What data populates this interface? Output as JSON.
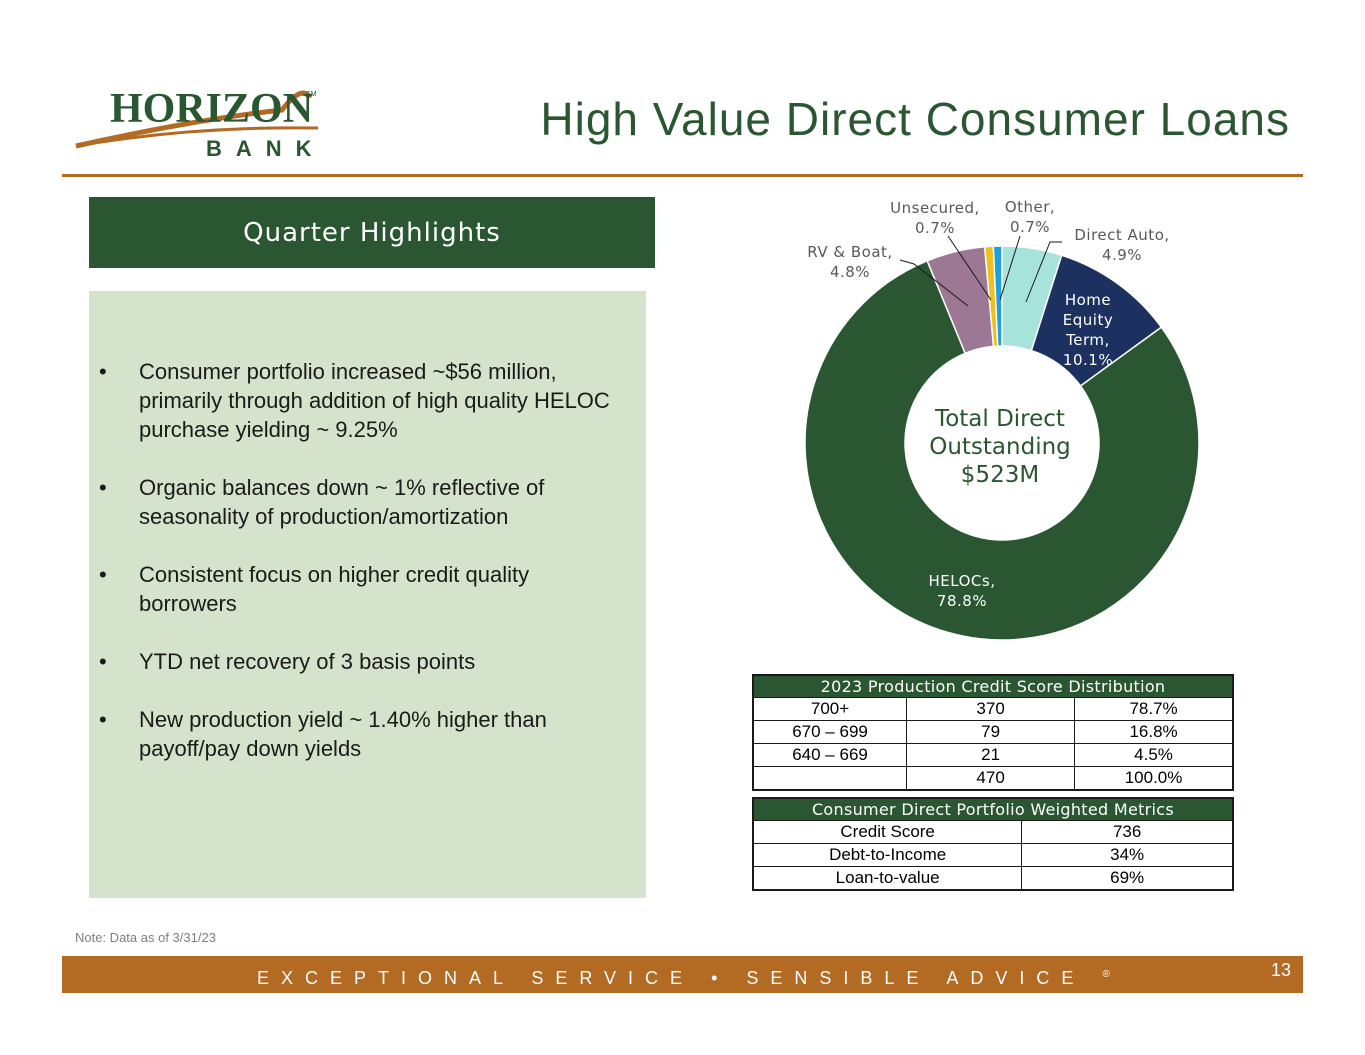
{
  "logo": {
    "text": "HORIZON",
    "sub": "BANK",
    "mark": "SM"
  },
  "title": "High Value Direct Consumer Loans",
  "highlights": {
    "header": "Quarter Highlights",
    "bullet": "•",
    "items": [
      "Consumer portfolio increased ~$56 million, primarily through addition of high quality HELOC purchase yielding ~ 9.25%",
      "Organic balances down ~ 1% reflective of seasonality of production/amortization",
      "Consistent focus on higher credit quality borrowers",
      "YTD net recovery of 3 basis points",
      "New production yield ~ 1.40% higher than payoff/pay down yields"
    ]
  },
  "chart_data": {
    "type": "pie",
    "donut": true,
    "center_text": [
      "Total Direct",
      "Outstanding",
      "$523M"
    ],
    "slices": [
      {
        "name": "Direct Auto",
        "value": 4.9,
        "label": [
          "Direct Auto,",
          "4.9%"
        ],
        "color": "#a6e3da"
      },
      {
        "name": "Home Equity Term",
        "value": 10.1,
        "label": [
          "Home",
          "Equity",
          "Term,",
          "10.1%"
        ],
        "color": "#1c3160"
      },
      {
        "name": "HELOCs",
        "value": 78.8,
        "label": [
          "HELOCs,",
          "78.8%"
        ],
        "color": "#2a5631"
      },
      {
        "name": "RV & Boat",
        "value": 4.8,
        "label": [
          "RV & Boat,",
          "4.8%"
        ],
        "color": "#9c7895"
      },
      {
        "name": "Unsecured",
        "value": 0.7,
        "label": [
          "Unsecured,",
          "0.7%"
        ],
        "color": "#f2c01c"
      },
      {
        "name": "Other",
        "value": 0.7,
        "label": [
          "Other,",
          "0.7%"
        ],
        "color": "#1f9ee0"
      }
    ]
  },
  "credit_table": {
    "title": "2023 Production Credit Score Distribution",
    "rows": [
      [
        "700+",
        "370",
        "78.7%"
      ],
      [
        "670 – 699",
        "79",
        "16.8%"
      ],
      [
        "640 – 669",
        "21",
        "4.5%"
      ],
      [
        "",
        "470",
        "100.0%"
      ]
    ]
  },
  "metrics_table": {
    "title": "Consumer Direct Portfolio Weighted Metrics",
    "rows": [
      [
        "Credit Score",
        "736"
      ],
      [
        "Debt-to-Income",
        "34%"
      ],
      [
        "Loan-to-value",
        "69%"
      ]
    ]
  },
  "note": "Note: Data as of 3/31/23",
  "footer": {
    "tagline": "EXCEPTIONAL SERVICE  •  SENSIBLE ADVICE",
    "registered": "®",
    "page_number": "13"
  }
}
